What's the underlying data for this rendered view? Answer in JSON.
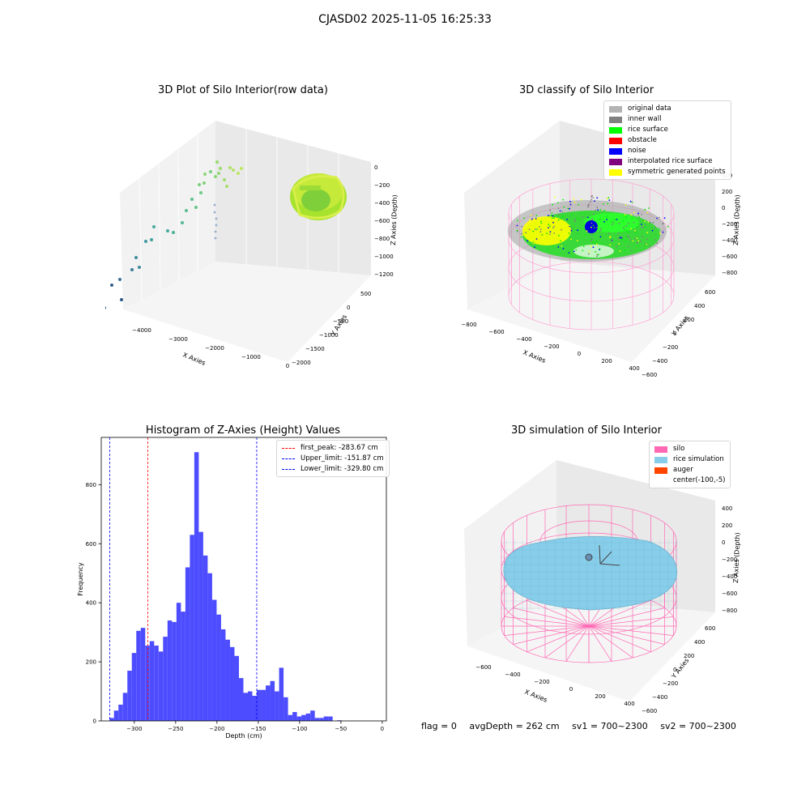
{
  "suptitle": "CJASD02 2025-11-05 16:25:33",
  "panel1": {
    "title": "3D Plot of Silo Interior(row data)",
    "x_label": "X Axies",
    "y_label": "Y Axies",
    "z_label": "Z Axies (Depth)",
    "x_ticks": [
      "−4000",
      "−3000",
      "−2000",
      "−1000",
      "0"
    ],
    "y_ticks": [
      "500",
      "0",
      "−500",
      "−1000",
      "−1500",
      "−2000"
    ],
    "z_ticks": [
      "0",
      "−200",
      "−400",
      "−600",
      "−800",
      "−1000",
      "−1200"
    ]
  },
  "panel2": {
    "title": "3D classify of Silo Interior",
    "x_label": "X Axies",
    "y_label": "Y Axies",
    "z_label": "Z Axies (Depth)",
    "x_ticks": [
      "−800",
      "−600",
      "−400",
      "−200",
      "0",
      "200",
      "400"
    ],
    "y_ticks": [
      "600",
      "400",
      "200",
      "0",
      "−200",
      "−400",
      "−600"
    ],
    "z_ticks": [
      "400",
      "200",
      "0",
      "−200",
      "−400",
      "−600",
      "−800"
    ],
    "legend": [
      {
        "label": "original data",
        "color": "#b3b3b3"
      },
      {
        "label": "inner wall",
        "color": "#808080"
      },
      {
        "label": "rice surface",
        "color": "#00ff00"
      },
      {
        "label": "obstacle",
        "color": "#ff0000"
      },
      {
        "label": "noise",
        "color": "#0000ff"
      },
      {
        "label": "interpolated rice surface",
        "color": "#800080"
      },
      {
        "label": "symmetric generated points",
        "color": "#ffff00"
      }
    ]
  },
  "panel4": {
    "title": "3D simulation of Silo Interior",
    "x_label": "X Axies",
    "y_label": "Y Axies",
    "z_label": "Z Axies (Depth)",
    "x_ticks": [
      "−600",
      "−400",
      "−200",
      "0",
      "200",
      "400"
    ],
    "y_ticks": [
      "600",
      "400",
      "200",
      "0",
      "−200",
      "−400",
      "−600"
    ],
    "z_ticks": [
      "400",
      "200",
      "0",
      "−200",
      "−400",
      "−600",
      "−800"
    ],
    "legend": [
      {
        "label": "silo",
        "color": "#ff69b4"
      },
      {
        "label": "rice simulation",
        "color": "#87ceeb"
      },
      {
        "label": "auger",
        "color": "#ff4500"
      },
      {
        "label": "center(-100,-5)",
        "color": ""
      }
    ]
  },
  "footer": {
    "flag": "flag = 0",
    "avg": "avgDepth = 262 cm",
    "sv1": "sv1 = 700~2300",
    "sv2": "sv2 = 700~2300"
  },
  "chart_data": [
    {
      "type": "scatter",
      "title": "3D Plot of Silo Interior(row data)",
      "xlabel": "X Axies",
      "ylabel": "Y Axies",
      "zlabel": "Z Axies (Depth)",
      "xlim": [
        -4500,
        500
      ],
      "ylim": [
        -2000,
        500
      ],
      "zlim": [
        -1200,
        0
      ]
    },
    {
      "type": "scatter",
      "title": "3D classify of Silo Interior",
      "xlabel": "X Axies",
      "ylabel": "Y Axies",
      "zlabel": "Z Axies (Depth)",
      "series": [
        {
          "name": "original data"
        },
        {
          "name": "inner wall"
        },
        {
          "name": "rice surface"
        },
        {
          "name": "obstacle"
        },
        {
          "name": "noise"
        },
        {
          "name": "interpolated rice surface"
        },
        {
          "name": "symmetric generated points"
        }
      ],
      "legend": "top-right"
    },
    {
      "type": "bar",
      "title": "Histogram of Z-Axies (Height) Values",
      "xlabel": "Depth (cm)",
      "ylabel": "Frequency",
      "xlim": [
        -340,
        5
      ],
      "ylim": [
        0,
        960
      ],
      "x_ticks": [
        -300,
        -250,
        -200,
        -150,
        -100,
        -50,
        0
      ],
      "y_ticks": [
        0,
        200,
        400,
        600,
        800
      ],
      "bin_start": -330,
      "bin_width": 5.4,
      "values": [
        10,
        35,
        55,
        95,
        170,
        230,
        305,
        315,
        255,
        270,
        255,
        235,
        285,
        340,
        335,
        400,
        370,
        520,
        630,
        910,
        640,
        560,
        500,
        410,
        360,
        310,
        275,
        250,
        220,
        145,
        95,
        100,
        85,
        105,
        105,
        120,
        135,
        100,
        180,
        80,
        20,
        30,
        15,
        20,
        25,
        35,
        10,
        10,
        15,
        15,
        0,
        2
      ],
      "vlines": [
        {
          "label": "first_peak: -283.67 cm",
          "x": -283.67,
          "color": "#ff0000"
        },
        {
          "label": "Upper_limit: -151.87 cm",
          "x": -151.87,
          "color": "#0000ff"
        },
        {
          "label": "Lower_limit: -329.80 cm",
          "x": -329.8,
          "color": "#0000ff"
        }
      ],
      "bar_color": "#4d4dff",
      "legend": "top-right"
    },
    {
      "type": "scatter",
      "title": "3D simulation of Silo Interior",
      "xlabel": "X Axies",
      "ylabel": "Y Axies",
      "zlabel": "Z Axies (Depth)",
      "series": [
        {
          "name": "silo"
        },
        {
          "name": "rice simulation"
        },
        {
          "name": "auger"
        },
        {
          "name": "center(-100,-5)"
        }
      ],
      "legend": "top-right"
    }
  ]
}
